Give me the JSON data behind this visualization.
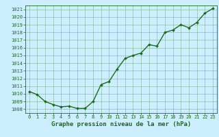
{
  "x": [
    0,
    1,
    2,
    3,
    4,
    5,
    6,
    7,
    8,
    9,
    10,
    11,
    12,
    13,
    14,
    15,
    16,
    17,
    18,
    19,
    20,
    21,
    22,
    23
  ],
  "y": [
    1010.3,
    1009.9,
    1009.0,
    1008.6,
    1008.3,
    1008.4,
    1008.1,
    1008.1,
    1009.0,
    1011.2,
    1011.6,
    1013.2,
    1014.6,
    1015.0,
    1015.3,
    1016.4,
    1016.2,
    1018.0,
    1018.3,
    1019.0,
    1018.6,
    1019.3,
    1020.5,
    1021.1
  ],
  "line_color": "#1a6b1a",
  "marker": "D",
  "marker_size": 2.0,
  "bg_color": "#cceeff",
  "grid_color": "#5a9a5a",
  "tick_color": "#1a6b1a",
  "title": "Graphe pression niveau de la mer (hPa)",
  "title_color": "#1a6b1a",
  "title_fontsize": 6.5,
  "tick_fontsize": 5.0,
  "ylim": [
    1007.5,
    1021.5
  ],
  "xlim": [
    -0.5,
    23.5
  ],
  "yticks": [
    1008,
    1009,
    1010,
    1011,
    1012,
    1013,
    1014,
    1015,
    1016,
    1017,
    1018,
    1019,
    1020,
    1021
  ],
  "xticks": [
    0,
    1,
    2,
    3,
    4,
    5,
    6,
    7,
    8,
    9,
    10,
    11,
    12,
    13,
    14,
    15,
    16,
    17,
    18,
    19,
    20,
    21,
    22,
    23
  ],
  "spine_color": "#1a6b1a",
  "linewidth": 1.0
}
